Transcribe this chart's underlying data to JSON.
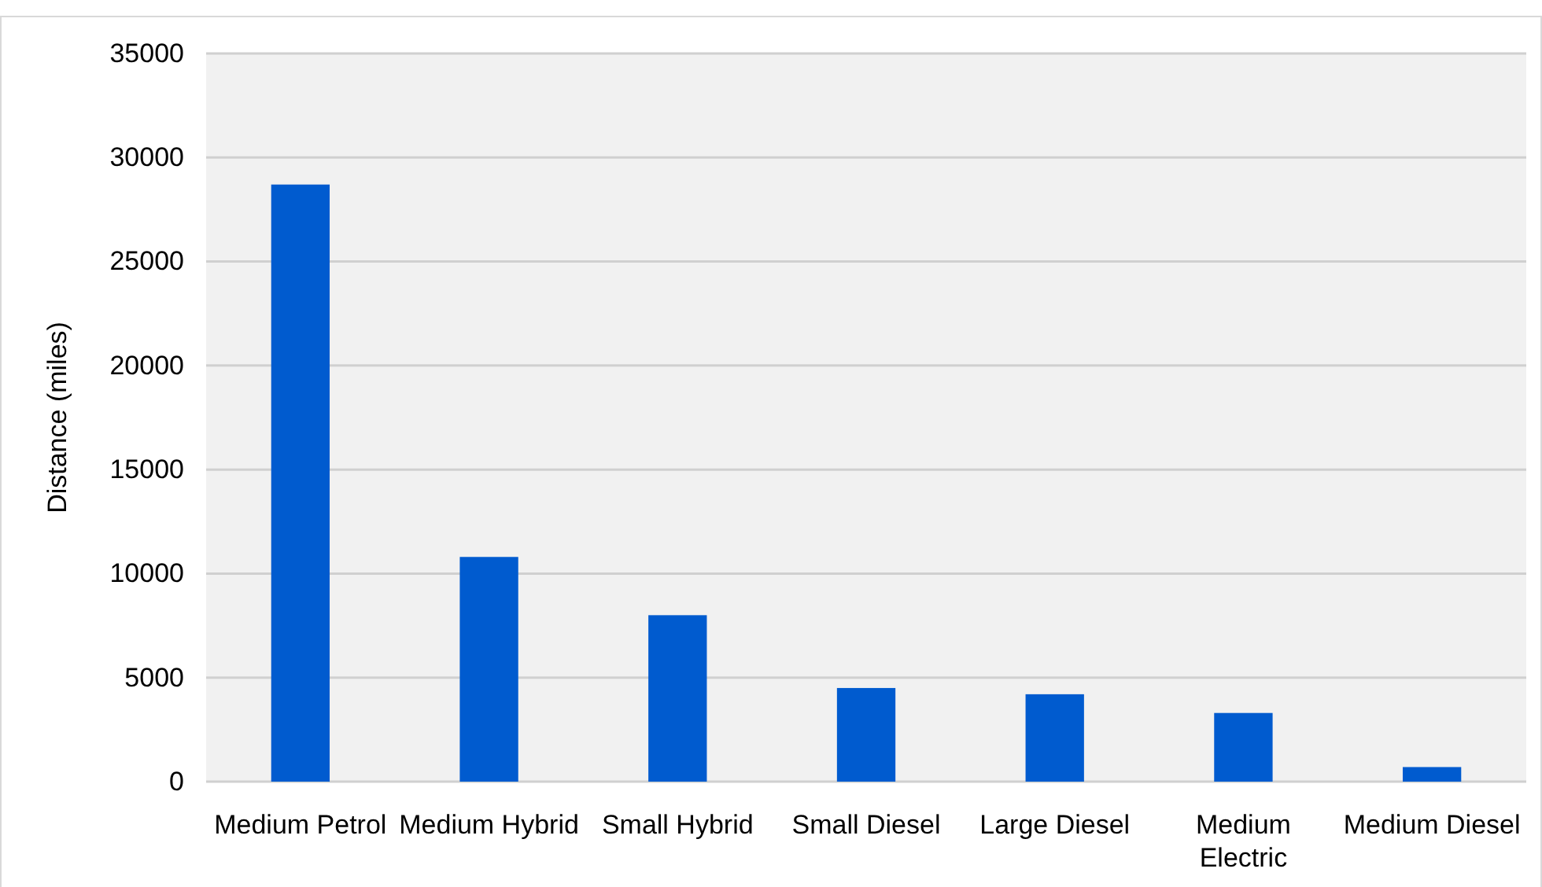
{
  "chart_data": {
    "type": "bar",
    "ylabel": "Distance (miles)",
    "categories": [
      "Medium Petrol",
      "Medium Hybrid",
      "Small Hybrid",
      "Small Diesel",
      "Large Diesel",
      "Medium Electric",
      "Medium Diesel"
    ],
    "values": [
      28700,
      10800,
      8000,
      4500,
      4200,
      3300,
      700
    ],
    "color": "#005bcf",
    "ylim": [
      0,
      35000
    ],
    "yticks": [
      0,
      5000,
      10000,
      15000,
      20000,
      25000,
      30000,
      35000
    ],
    "grid": "y"
  }
}
